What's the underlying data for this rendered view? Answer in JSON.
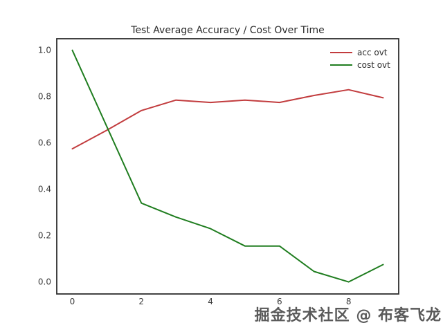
{
  "chart_data": {
    "type": "line",
    "title": "Test Average Accuracy / Cost Over Time",
    "xlabel": "",
    "ylabel": "",
    "x": [
      0,
      1,
      2,
      3,
      4,
      5,
      6,
      7,
      8,
      9
    ],
    "series": [
      {
        "name": "acc ovt",
        "color": "#c23c3e",
        "values": [
          0.575,
          0.655,
          0.74,
          0.785,
          0.775,
          0.785,
          0.775,
          0.805,
          0.83,
          0.795
        ]
      },
      {
        "name": "cost ovt",
        "color": "#1f7d1f",
        "values": [
          1.0,
          0.67,
          0.34,
          0.28,
          0.23,
          0.155,
          0.155,
          0.045,
          0.0,
          0.075
        ]
      }
    ],
    "x_ticks": [
      0,
      2,
      4,
      6,
      8
    ],
    "x_tick_labels": [
      "0",
      "2",
      "4",
      "6",
      "8"
    ],
    "y_ticks": [
      0.0,
      0.2,
      0.4,
      0.6,
      0.8,
      1.0
    ],
    "y_tick_labels": [
      "0.0",
      "0.2",
      "0.4",
      "0.6",
      "0.8",
      "1.0"
    ],
    "xlim": [
      -0.45,
      9.45
    ],
    "ylim": [
      -0.052,
      1.05
    ],
    "grid": false,
    "legend_position": "upper right",
    "spine_color": "#2e2e2e",
    "tick_label_color": "#3a3a3a",
    "title_color": "#2b2b2b",
    "legend_text_color": "#2b2b2b"
  },
  "watermark": {
    "text": "掘金技术社区 @ 布客飞龙"
  }
}
